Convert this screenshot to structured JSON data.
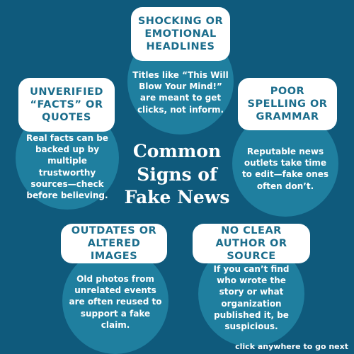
{
  "title": "Common\nSigns of\nFake News",
  "signs": {
    "shocking": {
      "heading": "SHOCKING OR EMOTIONAL HEADLINES",
      "text": "Titles like “This Will\nBlow Your Mind!”\nare meant to get\nclicks, not inform."
    },
    "unverified": {
      "heading": "UNVERIFIED “FACTS” OR QUOTES",
      "text": "Real facts can be\nbacked up by\nmultiple\ntrustworthy\nsources—check\nbefore believing."
    },
    "spelling": {
      "heading": "POOR SPELLING OR GRAMMAR",
      "text": "Reputable news\noutlets take time\nto edit—fake ones\noften don’t."
    },
    "images": {
      "heading": "OUTDATES OR ALTERED IMAGES",
      "text": "Old photos from\nunrelated events\nare often reused to\nsupport a fake\nclaim."
    },
    "author": {
      "heading": "NO CLEAR AUTHOR OR SOURCE",
      "text": "If you can’t find\nwho wrote the\nstory or what\norganization\npublished it, be\nsuspicious."
    }
  },
  "footer": "click anywhere to go next",
  "colors": {
    "background": "#0f5a7c",
    "circle": "#1f7f9f",
    "heading_text": "#1b6d8c"
  }
}
